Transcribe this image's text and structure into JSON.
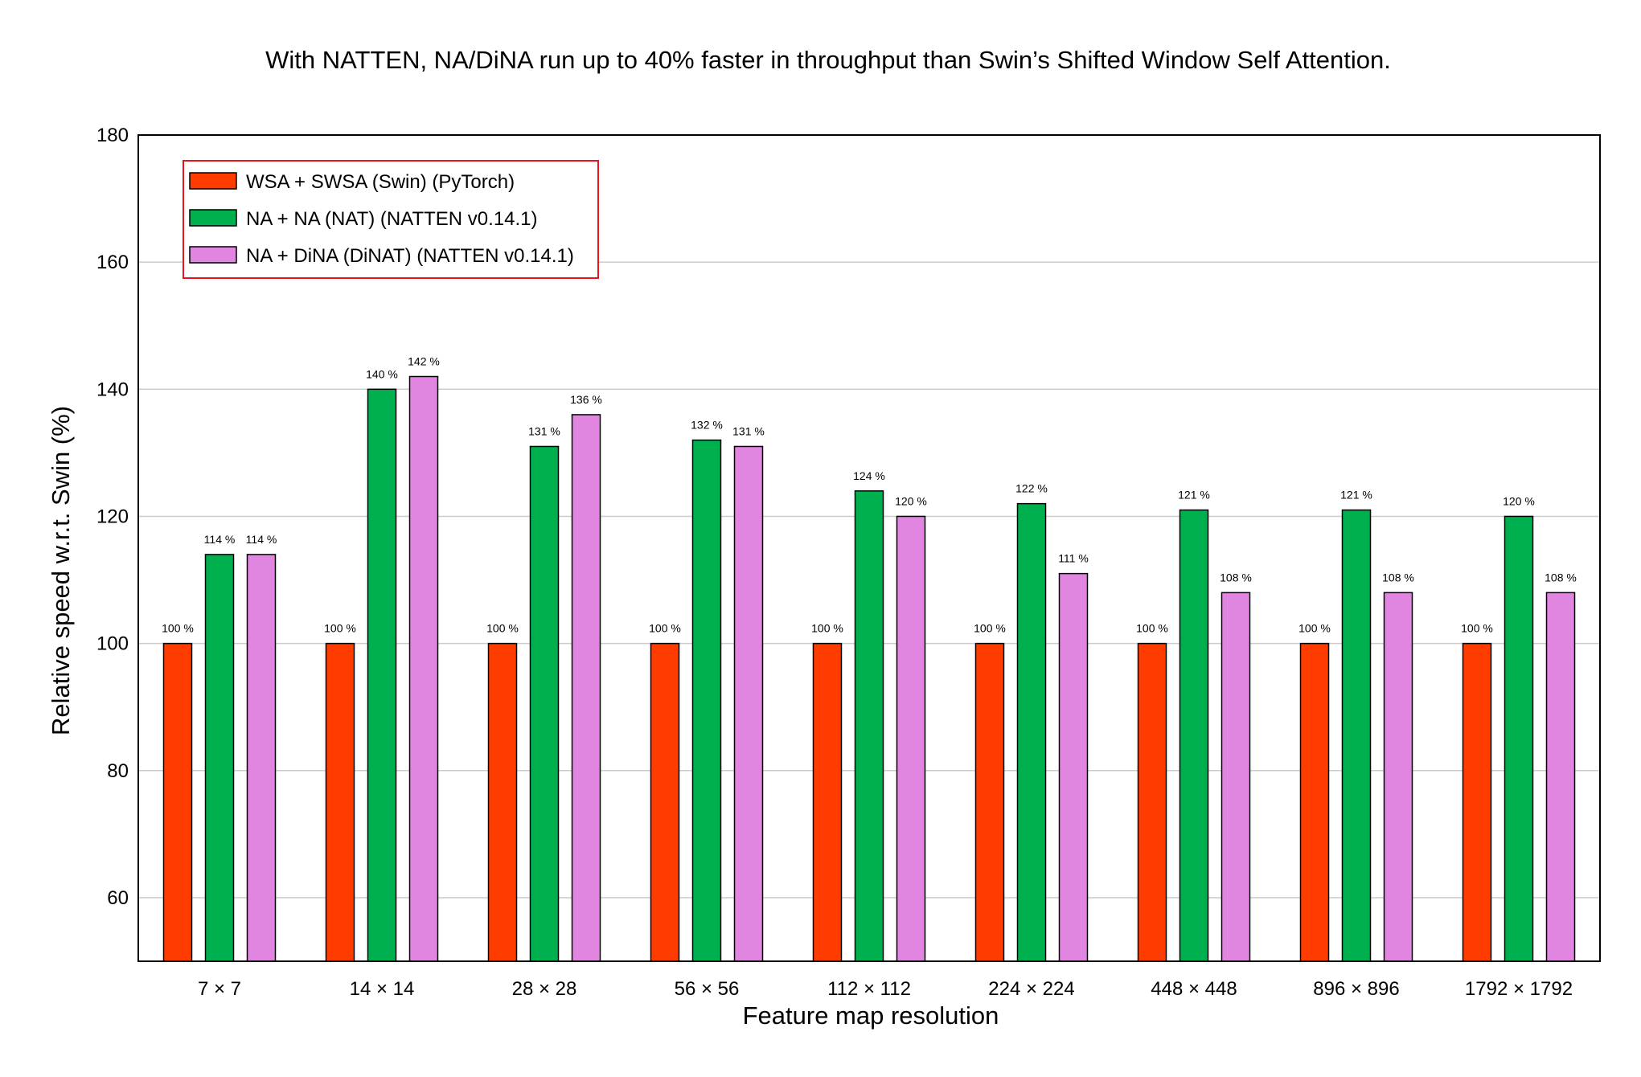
{
  "chart_data": {
    "type": "bar",
    "title": "With NATTEN, NA/DiNA run up to 40% faster in throughput than Swin’s Shifted Window Self Attention.",
    "xlabel": "Feature map resolution",
    "ylabel": "Relative speed w.r.t.  Swin (%)",
    "ylim": [
      50,
      180
    ],
    "yticks": [
      60,
      80,
      100,
      120,
      140,
      160,
      180
    ],
    "grid": "horizontal",
    "legend_position": "top-left",
    "value_suffix": " %",
    "categories": [
      "7 × 7",
      "14 × 14",
      "28 × 28",
      "56 × 56",
      "112 × 112",
      "224 × 224",
      "448 × 448",
      "896 × 896",
      "1792 × 1792"
    ],
    "series": [
      {
        "name": "WSA + SWSA (Swin) (PyTorch)",
        "color": "#ff3c00",
        "values": [
          100,
          100,
          100,
          100,
          100,
          100,
          100,
          100,
          100
        ]
      },
      {
        "name": "NA + NA (NAT) (NATTEN v0.14.1)",
        "color": "#00b04f",
        "values": [
          114,
          140,
          131,
          132,
          124,
          122,
          121,
          121,
          120
        ]
      },
      {
        "name": "NA + DiNA (DiNAT) (NATTEN v0.14.1)",
        "color": "#e085e0",
        "values": [
          114,
          142,
          136,
          131,
          120,
          111,
          108,
          108,
          108
        ]
      }
    ],
    "legend_border_color": "#e8141c"
  }
}
